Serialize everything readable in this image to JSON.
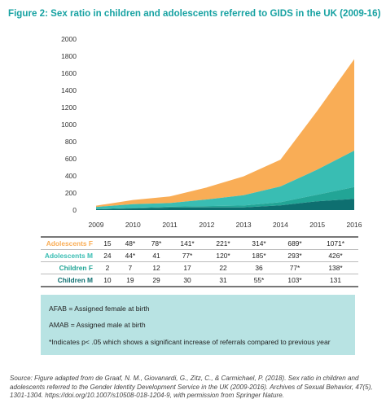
{
  "title": "Figure 2: Sex ratio in children and adolescents referred to GIDS in the UK (2009-16)",
  "colors": {
    "adolescents_f": "#f9ad56",
    "adolescents_m": "#39bdb3",
    "children_f": "#22a596",
    "children_m": "#0e6f70",
    "title": "#17a2a2",
    "note_bg": "#b8e3e3"
  },
  "chart_data": {
    "type": "area",
    "stacked": true,
    "x": [
      "2009",
      "2010",
      "2011",
      "2012",
      "2013",
      "2014",
      "2015",
      "2016"
    ],
    "series": [
      {
        "name": "Children M",
        "values": [
          10,
          19,
          29,
          30,
          31,
          55,
          103,
          131
        ]
      },
      {
        "name": "Children F",
        "values": [
          2,
          7,
          12,
          17,
          22,
          36,
          77,
          138
        ]
      },
      {
        "name": "Adolescents M",
        "values": [
          24,
          44,
          41,
          77,
          120,
          185,
          293,
          426
        ]
      },
      {
        "name": "Adolescents F",
        "values": [
          15,
          48,
          78,
          141,
          221,
          314,
          689,
          1071
        ]
      }
    ],
    "yticks": [
      "0",
      "200",
      "400",
      "600",
      "800",
      "1000",
      "1200",
      "1400",
      "1600",
      "1800",
      "2000"
    ],
    "ylim": [
      0,
      2000
    ],
    "grid": false,
    "legend": "table below chart"
  },
  "table": {
    "rows": [
      {
        "label": "Adolescents F",
        "values": [
          "15",
          "48*",
          "78*",
          "141*",
          "221*",
          "314*",
          "689*",
          "1071*"
        ]
      },
      {
        "label": "Adolescents M",
        "values": [
          "24",
          "44*",
          "41",
          "77*",
          "120*",
          "185*",
          "293*",
          "426*"
        ]
      },
      {
        "label": "Children F",
        "values": [
          "2",
          "7",
          "12",
          "17",
          "22",
          "36",
          "77*",
          "138*"
        ]
      },
      {
        "label": "Children M",
        "values": [
          "10",
          "19",
          "29",
          "30",
          "31",
          "55*",
          "103*",
          "131"
        ]
      }
    ]
  },
  "notes": {
    "afab": "AFAB = Assigned female at birth",
    "amab": "AMAB = Assigned male at birth",
    "significance": "*Indicates p< .05 which shows a significant increase of referrals compared to previous year"
  },
  "source": "Source: Figure adapted from de Graaf, N. M., Giovanardi, G., Zitz, C., & Carmichael, P. (2018). Sex ratio in children and adolescents referred to the Gender Identity Development Service in the UK (2009-2016). Archives of Sexual Behavior, 47(5), 1301-1304. https://doi.org/10.1007/s10508-018-1204-9, with permission from Springer Nature."
}
